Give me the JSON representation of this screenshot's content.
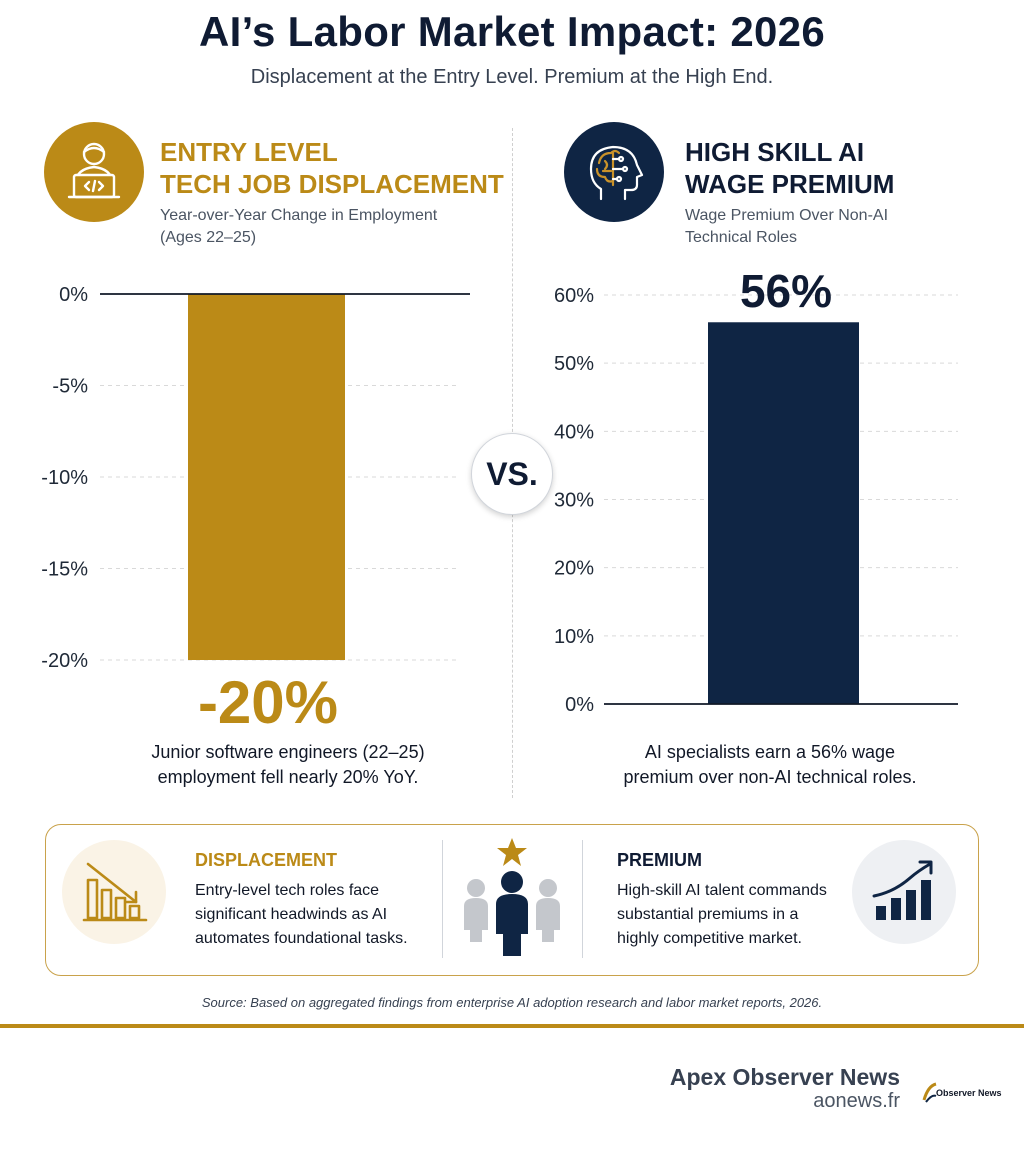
{
  "header": {
    "title": "AI’s Labor Market Impact: 2026",
    "subtitle": "Displacement at the Entry Level. Premium at the High End."
  },
  "left_panel": {
    "title_line1": "ENTRY LEVEL",
    "title_line2": "TECH JOB DISPLACEMENT",
    "subtitle_line1": "Year-over-Year Change in Employment",
    "subtitle_line2": "(Ages 22–25)",
    "big_value": "-20%",
    "caption_line1": "Junior software engineers (22–25)",
    "caption_line2": "employment fell nearly 20% YoY.",
    "icon": "developer-laptop-icon",
    "color": "#bb8a17"
  },
  "right_panel": {
    "title_line1": "HIGH SKILL AI",
    "title_line2": "WAGE PREMIUM",
    "subtitle_line1": "Wage Premium Over Non-AI",
    "subtitle_line2": "Technical Roles",
    "big_value": "56%",
    "caption_line1": "AI specialists earn a 56% wage",
    "caption_line2": "premium over non-AI technical roles.",
    "icon": "ai-brain-head-icon",
    "color": "#0f2544"
  },
  "vs_label": "VS.",
  "chart_data": [
    {
      "type": "bar",
      "categories": [
        ""
      ],
      "values": [
        -20
      ],
      "ylim": [
        -20,
        0
      ],
      "yticks": [
        "0%",
        "-5%",
        "-10%",
        "-15%",
        "-20%"
      ],
      "ytick_values": [
        0,
        -5,
        -10,
        -15,
        -20
      ],
      "grid": true,
      "color": "#bb8a17"
    },
    {
      "type": "bar",
      "categories": [
        ""
      ],
      "values": [
        56
      ],
      "ylim": [
        0,
        60
      ],
      "yticks": [
        "60%",
        "50%",
        "40%",
        "30%",
        "20%",
        "10%",
        "0%"
      ],
      "ytick_values": [
        60,
        50,
        40,
        30,
        20,
        10,
        0
      ],
      "grid": true,
      "color": "#0f2544"
    }
  ],
  "bottom": {
    "displacement_title": "DISPLACEMENT",
    "displacement_line1": "Entry-level tech roles face",
    "displacement_line2": "significant headwinds as AI",
    "displacement_line3": "automates foundational tasks.",
    "premium_title": "PREMIUM",
    "premium_line1": "High-skill AI talent commands",
    "premium_line2": "substantial premiums in a",
    "premium_line3": "highly competitive market.",
    "icons": [
      "declining-bars-icon",
      "people-star-icon",
      "rising-bars-icon"
    ]
  },
  "source": "Source: Based on aggregated findings from enterprise AI adoption research and labor market reports, 2026.",
  "footer": {
    "brand": "Apex Observer News",
    "url": "aonews.fr",
    "logo_text": "Observer News"
  }
}
